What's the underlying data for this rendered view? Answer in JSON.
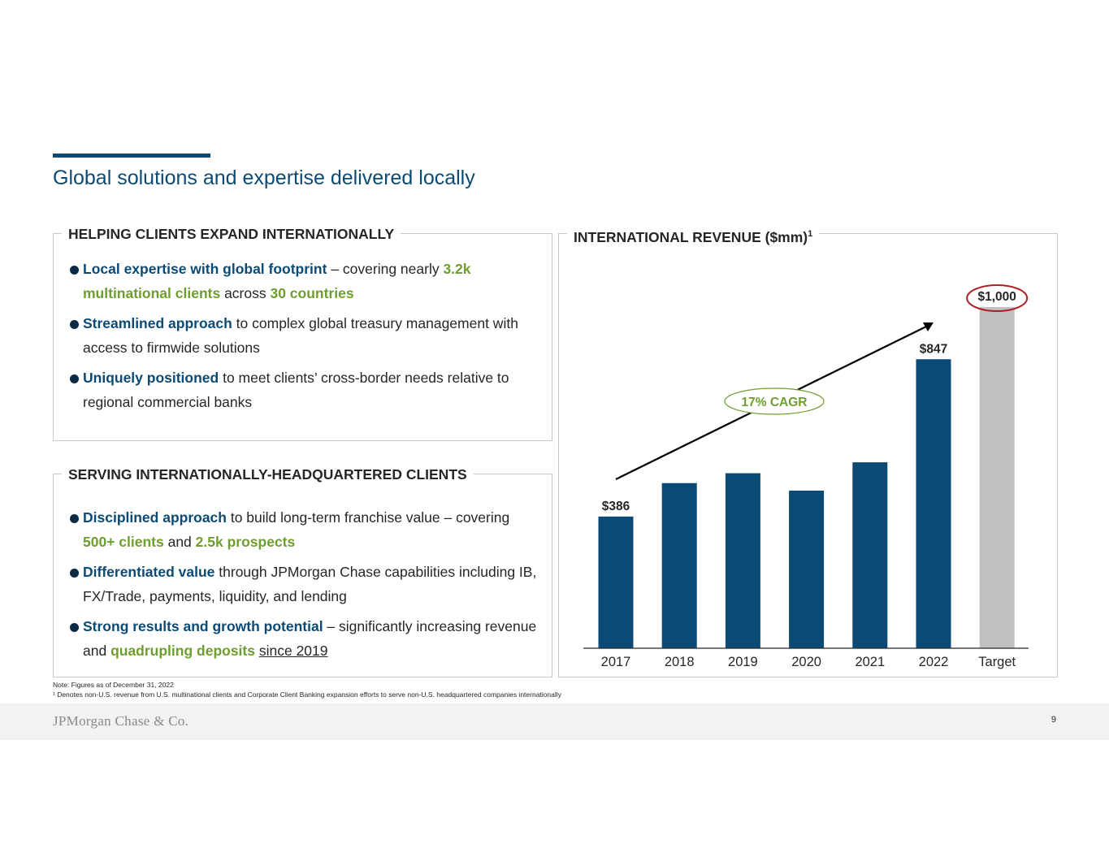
{
  "page": {
    "title": "Global solutions and expertise delivered locally",
    "page_number": "9",
    "logo_text": "JPMorgan Chase & Co."
  },
  "left_top": {
    "heading": "HELPING CLIENTS EXPAND INTERNATIONALLY",
    "bullets": [
      {
        "b1": "Local expertise with global footprint",
        "t1": " – covering nearly ",
        "g1": "3.2k multinational clients",
        "t2": " across ",
        "g2": "30 countries"
      },
      {
        "b1": "Streamlined approach",
        "t1": " to complex global treasury management with access to firmwide solutions"
      },
      {
        "b1": "Uniquely positioned",
        "t1": " to meet clients’ cross-border needs relative to regional commercial banks"
      }
    ]
  },
  "left_bottom": {
    "heading": "SERVING INTERNATIONALLY-HEADQUARTERED CLIENTS",
    "bullets": [
      {
        "b1": "Disciplined approach",
        "t1": " to build long-term franchise value – covering ",
        "g1": "500+ clients",
        "t2": " and ",
        "g2": "2.5k prospects"
      },
      {
        "b1": "Differentiated value",
        "t1": " through JPMorgan Chase capabilities including IB, FX/Trade, payments, liquidity, and lending"
      },
      {
        "b1": "Strong results and growth potential",
        "t1": " – significantly increasing revenue and ",
        "g1": "quadrupling deposits",
        "t2": " ",
        "u1": "since 2019"
      }
    ]
  },
  "right": {
    "heading": "INTERNATIONAL REVENUE ($mm)",
    "heading_sup": "1"
  },
  "chart_data": {
    "type": "bar",
    "title": "INTERNATIONAL REVENUE ($mm)",
    "categories": [
      "2017",
      "2018",
      "2019",
      "2020",
      "2021",
      "2022",
      "Target"
    ],
    "values": [
      386,
      484,
      513,
      462,
      545,
      847,
      1000
    ],
    "data_labels": [
      "$386",
      "",
      "",
      "",
      "",
      "$847",
      "$1,000"
    ],
    "colors": [
      "#0b4a75",
      "#0b4a75",
      "#0b4a75",
      "#0b4a75",
      "#0b4a75",
      "#0b4a75",
      "#c0c0c0"
    ],
    "ylim": [
      0,
      1000
    ],
    "annotation": "17% CAGR",
    "annotation_color": "#6e9e2f",
    "highlight_color": "#b01e23"
  },
  "notes": {
    "note1": "Note: Figures as of December 31, 2022",
    "note2": "¹ Denotes non-U.S. revenue from U.S. multinational clients and Corporate Client Banking expansion efforts to serve non-U.S. headquartered companies internationally"
  }
}
